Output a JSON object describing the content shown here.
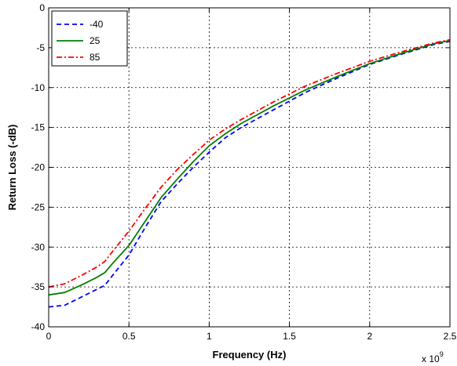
{
  "chart_data": {
    "type": "line",
    "title": "",
    "xlabel": "Frequency (Hz)",
    "ylabel": "Return Loss (-dB)",
    "x_multiplier_label": "x 10",
    "x_multiplier_exponent": "9",
    "xlim": [
      0,
      2.5
    ],
    "ylim": [
      -40,
      0
    ],
    "xticks": [
      0,
      0.5,
      1,
      1.5,
      2,
      2.5
    ],
    "xtick_labels": [
      "0",
      "0.5",
      "1",
      "1.5",
      "2",
      "2.5"
    ],
    "yticks": [
      0,
      -5,
      -10,
      -15,
      -20,
      -25,
      -30,
      -35,
      -40
    ],
    "ytick_labels": [
      "0",
      "-5",
      "-10",
      "-15",
      "-20",
      "-25",
      "-30",
      "-35",
      "-40"
    ],
    "grid": true,
    "legend_position": "top-left",
    "series": [
      {
        "name": "-40",
        "color": "#0000ff",
        "style": "dashed",
        "x": [
          0,
          0.1,
          0.2,
          0.3,
          0.35,
          0.4,
          0.5,
          0.6,
          0.7,
          0.8,
          0.9,
          1.0,
          1.1,
          1.2,
          1.4,
          1.6,
          1.8,
          2.0,
          2.2,
          2.4,
          2.5
        ],
        "y": [
          -37.5,
          -37.3,
          -36.3,
          -35.3,
          -34.8,
          -33.5,
          -31.0,
          -27.6,
          -24.3,
          -22.1,
          -20.0,
          -18.1,
          -16.3,
          -15.0,
          -12.8,
          -10.6,
          -8.8,
          -7.1,
          -5.8,
          -4.6,
          -4.2
        ]
      },
      {
        "name": "25",
        "color": "#008000",
        "style": "solid",
        "x": [
          0,
          0.1,
          0.2,
          0.3,
          0.35,
          0.4,
          0.5,
          0.6,
          0.7,
          0.8,
          0.9,
          1.0,
          1.1,
          1.2,
          1.4,
          1.6,
          1.8,
          2.0,
          2.2,
          2.4,
          2.5
        ],
        "y": [
          -36.0,
          -35.7,
          -34.8,
          -33.8,
          -33.2,
          -32.0,
          -29.8,
          -26.8,
          -23.8,
          -21.5,
          -19.3,
          -17.3,
          -15.8,
          -14.5,
          -12.3,
          -10.3,
          -8.6,
          -7.0,
          -5.7,
          -4.5,
          -4.1
        ]
      },
      {
        "name": "85",
        "color": "#ff0000",
        "style": "dashdot",
        "x": [
          0,
          0.1,
          0.2,
          0.3,
          0.35,
          0.4,
          0.5,
          0.6,
          0.7,
          0.8,
          0.9,
          1.0,
          1.1,
          1.2,
          1.4,
          1.6,
          1.8,
          2.0,
          2.2,
          2.4,
          2.5
        ],
        "y": [
          -35.0,
          -34.6,
          -33.6,
          -32.5,
          -31.8,
          -30.5,
          -28.0,
          -25.2,
          -22.5,
          -20.3,
          -18.4,
          -16.6,
          -15.2,
          -14.0,
          -11.8,
          -9.8,
          -8.2,
          -6.7,
          -5.5,
          -4.4,
          -4.0
        ]
      }
    ]
  }
}
